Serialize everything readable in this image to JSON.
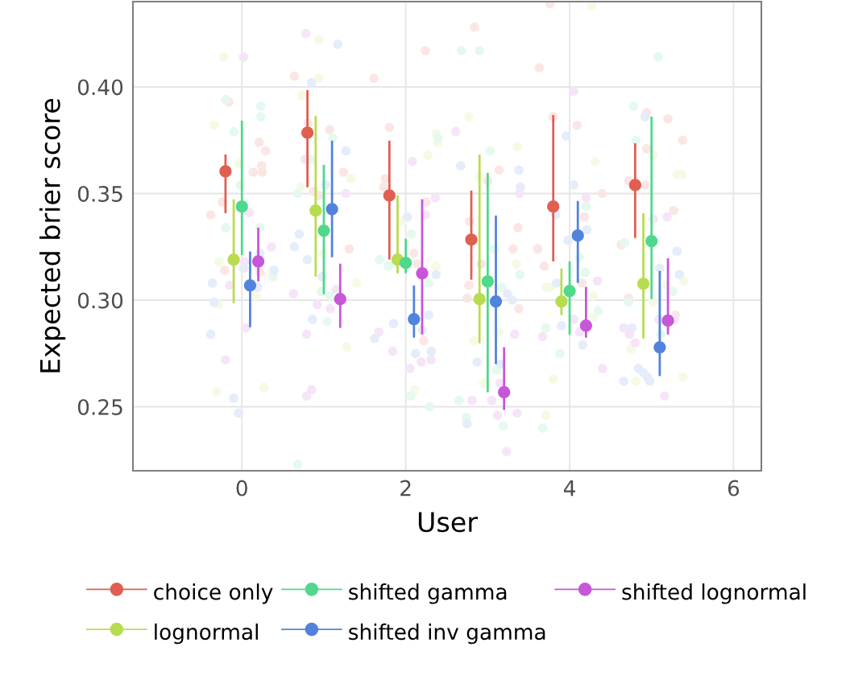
{
  "chart_data": {
    "type": "scatter",
    "xlabel": "User",
    "ylabel": "Expected brier score",
    "xlim": [
      -1.33,
      6.34
    ],
    "ylim": [
      0.22,
      0.44
    ],
    "xticks": [
      0,
      2,
      4,
      6
    ],
    "yticks": [
      0.25,
      {
        "value": 0.3,
        "label": "0.30"
      },
      0.35,
      {
        "value": 0.4,
        "label": "0.40"
      }
    ],
    "grid": true,
    "legend": "bottom",
    "marker": "circle",
    "series": [
      {
        "color": "#fae7e5",
        "x": [
          -0.16,
          0.21,
          0.29,
          0.24,
          0.14,
          0.25,
          -0.24,
          -0.38,
          -0.21,
          0.64,
          0.81,
          1.07,
          0.87,
          0.94,
          0.22,
          1.61,
          2.24,
          2.84,
          3.63,
          1.8,
          1.75,
          1.73,
          1.24,
          1.31,
          2.25,
          2.1,
          2.14,
          2.22,
          2.78,
          3.14,
          3.0,
          3.37,
          3.31,
          3.61,
          3.69,
          2.77,
          2.75,
          3.38,
          2.92,
          3.8,
          4.09,
          4.4,
          4.18,
          4.15,
          4.72,
          4.92,
          4.94,
          4.94,
          5.2,
          5.38,
          5.27,
          4.63,
          4.72,
          5.29,
          3.76
        ],
        "values": [
          0.393,
          0.374,
          0.37,
          0.363,
          0.36,
          0.36,
          0.346,
          0.34,
          0.314,
          0.405,
          0.383,
          0.38,
          0.351,
          0.349,
          0.313,
          0.404,
          0.417,
          0.428,
          0.409,
          0.381,
          0.357,
          0.353,
          0.36,
          0.324,
          0.346,
          0.322,
          0.317,
          0.281,
          0.337,
          0.361,
          0.356,
          0.334,
          0.324,
          0.324,
          0.316,
          0.307,
          0.301,
          0.296,
          0.317,
          0.386,
          0.382,
          0.35,
          0.339,
          0.308,
          0.356,
          0.354,
          0.371,
          0.388,
          0.385,
          0.375,
          0.342,
          0.326,
          0.301,
          0.293,
          0.439
        ]
      },
      {
        "color": "#f5fae5",
        "x": [
          -0.22,
          -0.34,
          -0.04,
          -0.28,
          -0.29,
          0.17,
          -0.31,
          0.27,
          0.94,
          0.94,
          0.73,
          0.72,
          0.99,
          1.33,
          1.4,
          1.28,
          1.96,
          2.27,
          2.37,
          2.39,
          2.37,
          2.11,
          2.77,
          2.9,
          3.35,
          3.36,
          2.83,
          2.95,
          3.14,
          3.71,
          3.71,
          4.27,
          4.31,
          3.76,
          3.8,
          4.29,
          4.29,
          4.75,
          4.81,
          5.31,
          5.37,
          5.02,
          5.19,
          5.39,
          5.38,
          5.02
        ],
        "values": [
          0.414,
          0.382,
          0.364,
          0.318,
          0.298,
          0.302,
          0.257,
          0.259,
          0.422,
          0.404,
          0.396,
          0.353,
          0.322,
          0.357,
          0.308,
          0.278,
          0.337,
          0.368,
          0.378,
          0.374,
          0.316,
          0.258,
          0.386,
          0.358,
          0.317,
          0.372,
          0.281,
          0.261,
          0.285,
          0.246,
          0.306,
          0.438,
          0.365,
          0.306,
          0.263,
          0.302,
          0.292,
          0.277,
          0.262,
          0.359,
          0.359,
          0.368,
          0.307,
          0.309,
          0.264,
          0.299
        ]
      },
      {
        "color": "#e5f9ee",
        "x": [
          -0.2,
          0.23,
          0.23,
          -0.1,
          -0.02,
          -0.2,
          0.22,
          0.38,
          1.11,
          0.84,
          0.68,
          0.97,
          1.08,
          1.04,
          0.68,
          2.68,
          2.9,
          3.03,
          2.39,
          2.07,
          1.68,
          1.79,
          2.28,
          3.08,
          3.39,
          3.17,
          3.11,
          2.65,
          2.74,
          3.19,
          2.29,
          2.06,
          3.71,
          3.67,
          5.08,
          4.78,
          4.81,
          4.2,
          4.12,
          4.19,
          4.67,
          4.72,
          5.26,
          5.11,
          3.88,
          4.35
        ],
        "values": [
          0.394,
          0.391,
          0.386,
          0.379,
          0.354,
          0.334,
          0.334,
          0.311,
          0.376,
          0.366,
          0.35,
          0.304,
          0.302,
          0.29,
          0.223,
          0.417,
          0.417,
          0.37,
          0.376,
          0.331,
          0.319,
          0.316,
          0.308,
          0.324,
          0.312,
          0.306,
          0.267,
          0.253,
          0.245,
          0.241,
          0.25,
          0.255,
          0.287,
          0.24,
          0.414,
          0.391,
          0.375,
          0.344,
          0.32,
          0.313,
          0.327,
          0.299,
          0.304,
          0.284,
          0.275,
          0.295
        ]
      },
      {
        "color": "#e5ecfa",
        "x": [
          -0.36,
          -0.34,
          -0.38,
          -0.1,
          -0.04,
          0.02,
          0.19,
          0.22,
          0.39,
          0.85,
          1.17,
          0.7,
          0.64,
          0.8,
          1.02,
          0.98,
          0.86,
          1.27,
          1.62,
          1.85,
          2.02,
          2.2,
          2.28,
          2.12,
          2.31,
          2.37,
          2.67,
          2.75,
          2.87,
          3.24,
          3.3,
          3.38,
          3.4,
          3.16,
          3.96,
          4.05,
          3.83,
          3.98,
          4.21,
          3.84,
          3.9,
          4.16,
          4.92,
          5.31,
          5.34,
          5.1,
          4.76,
          4.84,
          4.9,
          4.95,
          4.98,
          4.66
        ],
        "values": [
          0.308,
          0.299,
          0.284,
          0.254,
          0.247,
          0.315,
          0.306,
          0.322,
          0.314,
          0.402,
          0.42,
          0.331,
          0.325,
          0.319,
          0.354,
          0.311,
          0.291,
          0.37,
          0.282,
          0.289,
          0.339,
          0.286,
          0.293,
          0.275,
          0.276,
          0.312,
          0.363,
          0.242,
          0.271,
          0.303,
          0.3,
          0.361,
          0.353,
          0.27,
          0.377,
          0.354,
          0.34,
          0.328,
          0.333,
          0.308,
          0.288,
          0.279,
          0.386,
          0.323,
          0.312,
          0.315,
          0.287,
          0.268,
          0.266,
          0.264,
          0.262,
          0.262
        ]
      },
      {
        "color": "#f6e5f9",
        "x": [
          0.02,
          0.09,
          0.36,
          0.03,
          -0.15,
          0.05,
          -0.2,
          0.78,
          0.77,
          0.63,
          0.92,
          1.08,
          1.15,
          0.79,
          0.85,
          0.79,
          1.27,
          1.67,
          1.84,
          2.08,
          2.24,
          2.36,
          2.05,
          2.19,
          2.31,
          2.61,
          2.81,
          3.05,
          3.15,
          3.12,
          3.23,
          3.36,
          3.39,
          3.33,
          3.67,
          4.05,
          4.2,
          4.34,
          4.05,
          4.12,
          4.4,
          4.66,
          4.73,
          4.8,
          5.02,
          5.19,
          5.09,
          5.28,
          5.16
        ],
        "values": [
          0.414,
          0.341,
          0.325,
          0.318,
          0.307,
          0.287,
          0.272,
          0.425,
          0.366,
          0.303,
          0.298,
          0.296,
          0.305,
          0.284,
          0.258,
          0.255,
          0.35,
          0.285,
          0.276,
          0.365,
          0.34,
          0.348,
          0.268,
          0.271,
          0.272,
          0.379,
          0.253,
          0.253,
          0.261,
          0.246,
          0.229,
          0.247,
          0.35,
          0.284,
          0.283,
          0.398,
          0.348,
          0.309,
          0.291,
          0.285,
          0.268,
          0.287,
          0.284,
          0.28,
          0.338,
          0.339,
          0.291,
          0.291,
          0.255
        ]
      },
      {
        "name": "choice only",
        "color": "#e05f51",
        "x": [
          -0.2,
          0.8,
          1.8,
          2.8,
          3.8,
          4.8
        ],
        "values": [
          0.3604,
          0.3785,
          0.3491,
          0.3284,
          0.3439,
          0.354
        ],
        "errors": [
          [
            0.3408,
            0.3683
          ],
          [
            0.3529,
            0.3985
          ],
          [
            0.319,
            0.3748
          ],
          [
            0.3096,
            0.3514
          ],
          [
            0.3182,
            0.3868
          ],
          [
            0.3292,
            0.3736
          ]
        ]
      },
      {
        "name": "lognormal",
        "color": "#b8dc50",
        "x": [
          -0.1,
          0.9,
          1.9,
          2.9,
          3.9,
          4.9
        ],
        "values": [
          0.319,
          0.342,
          0.319,
          0.3005,
          0.2994,
          0.3077
        ],
        "errors": [
          [
            0.2986,
            0.3473
          ],
          [
            0.3111,
            0.3864
          ],
          [
            0.3126,
            0.3491
          ],
          [
            0.2798,
            0.3683
          ],
          [
            0.293,
            0.3148
          ],
          [
            0.282,
            0.3408
          ]
        ]
      },
      {
        "name": "shifted gamma",
        "color": "#50d88c",
        "x": [
          0,
          1,
          2,
          3,
          4,
          5
        ],
        "values": [
          0.3439,
          0.3326,
          0.3175,
          0.3088,
          0.3043,
          0.3277
        ],
        "errors": [
          [
            0.3212,
            0.3842
          ],
          [
            0.3028,
            0.3635
          ],
          [
            0.3126,
            0.3288
          ],
          [
            0.2568,
            0.3597
          ],
          [
            0.2839,
            0.3182
          ],
          [
            0.3005,
            0.3861
          ]
        ]
      },
      {
        "name": "shifted inv gamma",
        "color": "#5283dc",
        "x": [
          0.1,
          1.1,
          2.1,
          3.1,
          4.1,
          5.1
        ],
        "values": [
          0.3069,
          0.3427,
          0.2911,
          0.2994,
          0.3303,
          0.2779
        ],
        "errors": [
          [
            0.2873,
            0.3228
          ],
          [
            0.3201,
            0.3748
          ],
          [
            0.2824,
            0.3069
          ],
          [
            0.27,
            0.3397
          ],
          [
            0.3081,
            0.3465
          ],
          [
            0.2644,
            0.3137
          ]
        ]
      },
      {
        "name": "shifted lognormal",
        "color": "#c856d8",
        "x": [
          0.2,
          1.2,
          2.2,
          3.2,
          4.2,
          5.2
        ],
        "values": [
          0.3182,
          0.3005,
          0.3126,
          0.2568,
          0.2881,
          0.2904
        ],
        "errors": [
          [
            0.3088,
            0.334
          ],
          [
            0.287,
            0.3171
          ],
          [
            0.2839,
            0.3473
          ],
          [
            0.2485,
            0.2779
          ],
          [
            0.2824,
            0.3062
          ],
          [
            0.2839,
            0.3197
          ]
        ]
      }
    ]
  }
}
